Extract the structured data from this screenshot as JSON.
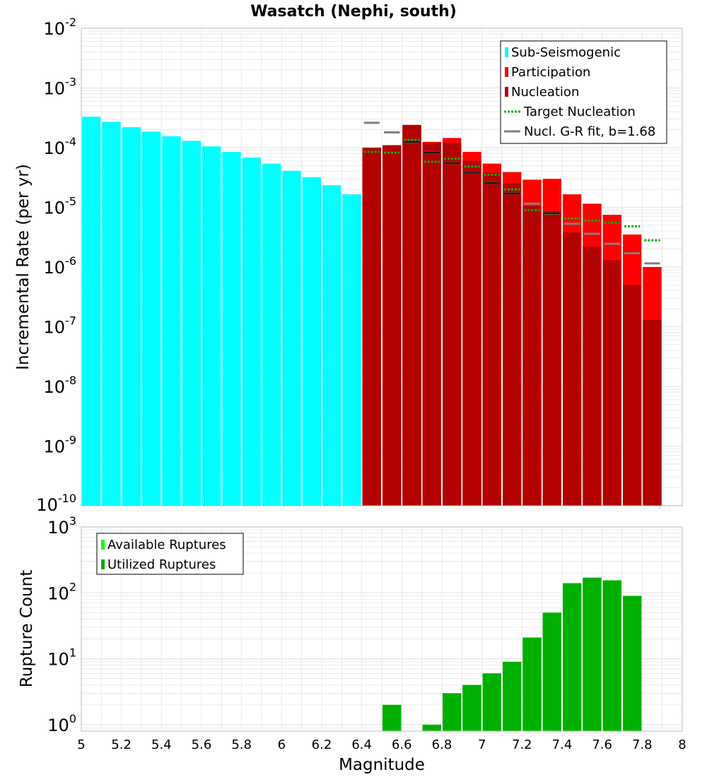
{
  "title": "Wasatch (Nephi, south)",
  "colors": {
    "sub_seismogenic": "#00ffff",
    "participation": "#ff0000",
    "nucleation": "#b30000",
    "target_nucleation": "#00b000",
    "gr_fit": "#808080",
    "available_ruptures": "#00ff00",
    "utilized_ruptures": "#00b000",
    "grid": "#e6e6e6",
    "axis_frame": "#bbbbbb"
  },
  "chart_data": [
    {
      "type": "bar",
      "id": "rates",
      "scale": "log",
      "ylabel": "Incremental Rate (per yr)",
      "xlabel": "",
      "xlim": [
        5,
        8
      ],
      "ylim": [
        1e-10,
        0.01
      ],
      "y_tick_labels": [
        {
          "base": "10",
          "exp": "-10"
        },
        {
          "base": "10",
          "exp": "-9"
        },
        {
          "base": "10",
          "exp": "-8"
        },
        {
          "base": "10",
          "exp": "-7"
        },
        {
          "base": "10",
          "exp": "-6"
        },
        {
          "base": "10",
          "exp": "-5"
        },
        {
          "base": "10",
          "exp": "-4"
        },
        {
          "base": "10",
          "exp": "-3"
        },
        {
          "base": "10",
          "exp": "-2"
        }
      ],
      "bin_width": 0.1,
      "series": [
        {
          "name": "Sub-Seismogenic",
          "style": "bar",
          "x": [
            5.05,
            5.15,
            5.25,
            5.35,
            5.45,
            5.55,
            5.65,
            5.75,
            5.85,
            5.95,
            6.05,
            6.15,
            6.25,
            6.35
          ],
          "values": [
            0.00033,
            0.00027,
            0.00022,
            0.000185,
            0.000155,
            0.00013,
            0.000105,
            8.5e-05,
            6.8e-05,
            5.4e-05,
            4.1e-05,
            3.2e-05,
            2.35e-05,
            1.65e-05
          ]
        },
        {
          "name": "Participation",
          "style": "bar",
          "x": [
            6.45,
            6.55,
            6.65,
            6.75,
            6.85,
            6.95,
            7.05,
            7.15,
            7.25,
            7.35,
            7.45,
            7.55,
            7.65,
            7.75,
            7.85
          ],
          "values": [
            0.0001,
            0.00011,
            0.00024,
            0.000125,
            0.000145,
            8.5e-05,
            5.4e-05,
            3.9e-05,
            2.9e-05,
            3e-05,
            1.65e-05,
            1.15e-05,
            7.5e-06,
            3.5e-06,
            1e-06
          ]
        },
        {
          "name": "Nucleation",
          "style": "bar",
          "x": [
            6.45,
            6.55,
            6.65,
            6.75,
            6.85,
            6.95,
            7.05,
            7.15,
            7.25,
            7.35,
            7.45,
            7.55,
            7.65,
            7.75,
            7.85
          ],
          "values": [
            0.0001,
            0.00011,
            0.00024,
            0.00012,
            0.00012,
            6e-05,
            3.8e-05,
            2.5e-05,
            1.05e-05,
            8.5e-06,
            3.8e-06,
            2.2e-06,
            1.3e-06,
            5e-07,
            1.3e-07
          ]
        },
        {
          "name": "Target Nucleation",
          "style": "dotted-line",
          "x": [
            6.45,
            6.55,
            6.65,
            6.75,
            6.85,
            6.95,
            7.05,
            7.15,
            7.25,
            7.35,
            7.45,
            7.55,
            7.65,
            7.75,
            7.85
          ],
          "values": [
            8.5e-05,
            8.2e-05,
            0.000135,
            5.8e-05,
            6.5e-05,
            4.8e-05,
            3.5e-05,
            2e-05,
            9e-06,
            7.8e-06,
            6.5e-06,
            6e-06,
            5.5e-06,
            4.8e-06,
            2.8e-06
          ]
        },
        {
          "name": "Nucl. G-R fit, b=1.68",
          "style": "dash",
          "x": [
            6.45,
            6.55,
            6.65,
            6.75,
            6.85,
            6.95,
            7.05,
            7.15,
            7.25,
            7.35,
            7.45,
            7.55,
            7.65,
            7.75,
            7.85
          ],
          "values": [
            0.00026,
            0.00018,
            0.000125,
            8.2e-05,
            5.5e-05,
            3.8e-05,
            2.55e-05,
            1.7e-05,
            1.15e-05,
            8e-06,
            5.3e-06,
            3.6e-06,
            2.45e-06,
            1.7e-06,
            1.15e-06
          ]
        }
      ],
      "legend": {
        "position": "top-right",
        "entries": [
          {
            "label": "Sub-Seismogenic",
            "key": "sub_seismogenic",
            "marker": "bar"
          },
          {
            "label": "Participation",
            "key": "participation",
            "marker": "bar"
          },
          {
            "label": "Nucleation",
            "key": "nucleation",
            "marker": "bar"
          },
          {
            "label": "Target Nucleation",
            "key": "target_nucleation",
            "marker": "dotted"
          },
          {
            "label": "Nucl. G-R fit, b=1.68",
            "key": "gr_fit",
            "marker": "line"
          }
        ]
      }
    },
    {
      "type": "bar",
      "id": "counts",
      "scale": "log",
      "ylabel": "Rupture Count",
      "xlabel": "Magnitude",
      "xlim": [
        5,
        8
      ],
      "ylim": [
        0.8,
        1000
      ],
      "x_ticks": [
        5,
        5.2,
        5.4,
        5.6,
        5.8,
        6,
        6.2,
        6.4,
        6.6,
        6.8,
        7,
        7.2,
        7.4,
        7.6,
        7.8,
        8
      ],
      "x_tick_labels": [
        "5",
        "5.2",
        "5.4",
        "5.6",
        "5.8",
        "6",
        "6.2",
        "6.4",
        "6.6",
        "6.8",
        "7",
        "7.2",
        "7.4",
        "7.6",
        "7.8",
        "8"
      ],
      "y_tick_labels": [
        {
          "base": "10",
          "exp": "0"
        },
        {
          "base": "10",
          "exp": "1"
        },
        {
          "base": "10",
          "exp": "2"
        },
        {
          "base": "10",
          "exp": "3"
        }
      ],
      "bin_width": 0.1,
      "series": [
        {
          "name": "Available Ruptures",
          "style": "bar",
          "x": [
            6.55,
            6.75,
            6.85,
            6.95,
            7.05,
            7.15,
            7.25,
            7.35,
            7.45,
            7.55,
            7.65,
            7.75
          ],
          "values": [
            2,
            1,
            3,
            4,
            6,
            9,
            21,
            50,
            140,
            170,
            155,
            90
          ]
        },
        {
          "name": "Utilized Ruptures",
          "style": "bar",
          "x": [
            6.55,
            6.75,
            6.85,
            6.95,
            7.05,
            7.15,
            7.25,
            7.35,
            7.45,
            7.55,
            7.65,
            7.75
          ],
          "values": [
            2,
            1,
            3,
            4,
            6,
            9,
            21,
            50,
            140,
            170,
            155,
            90
          ]
        }
      ],
      "legend": {
        "position": "top-left",
        "entries": [
          {
            "label": "Available Ruptures",
            "key": "available_ruptures",
            "marker": "bar"
          },
          {
            "label": "Utilized Ruptures",
            "key": "utilized_ruptures",
            "marker": "bar"
          }
        ]
      }
    }
  ]
}
